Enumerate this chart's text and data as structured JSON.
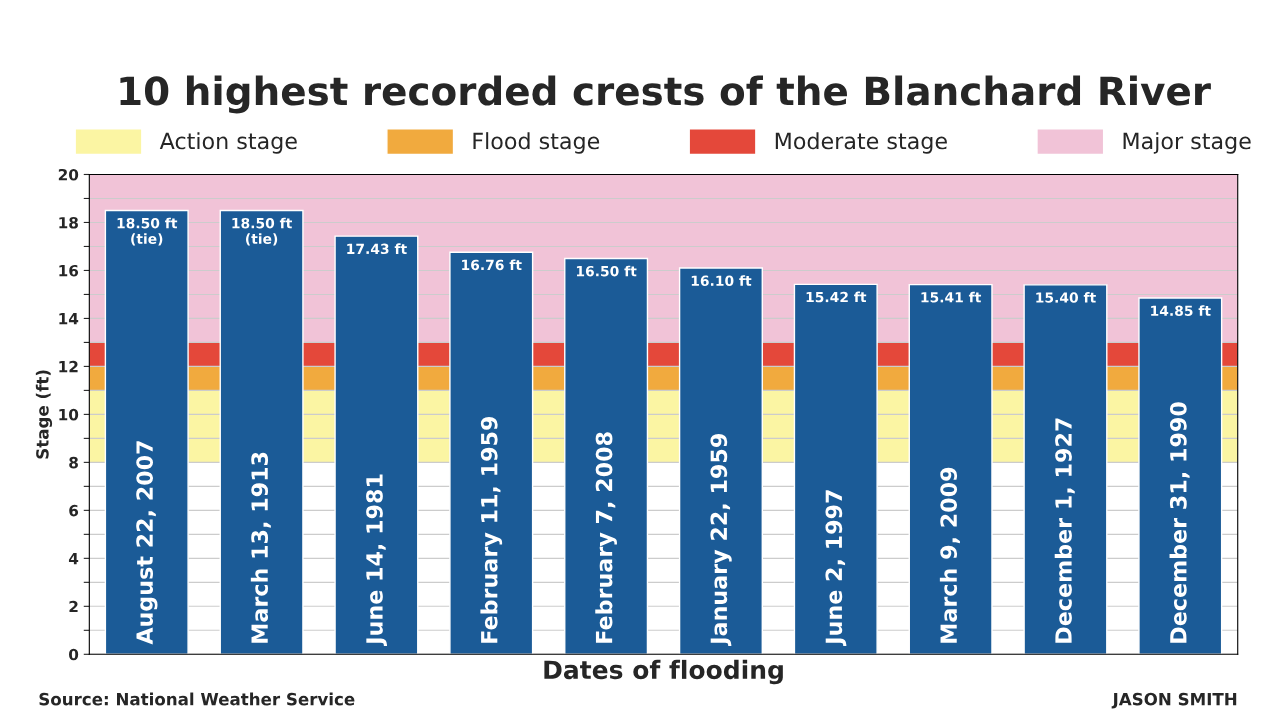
{
  "chart_data": {
    "type": "bar",
    "title": "10 highest recorded crests of the Blanchard River",
    "xlabel": "Dates of flooding",
    "ylabel": "Stage (ft)",
    "categories": [
      "August 22, 2007",
      "March 13, 1913",
      "June 14, 1981",
      "February 11, 1959",
      "February 7, 2008",
      "January 22, 1959",
      "June 2, 1997",
      "March 9, 2009",
      "December 1, 1927",
      "December 31, 1990"
    ],
    "values": [
      18.5,
      18.5,
      17.43,
      16.76,
      16.5,
      16.1,
      15.42,
      15.41,
      15.4,
      14.85
    ],
    "color": "#1b5b97",
    "value_labels": [
      "18.50 ft\n(tie)",
      "18.50 ft\n(tie)",
      "17.43 ft",
      "16.76 ft",
      "16.50 ft",
      "16.10 ft",
      "15.42 ft",
      "15.41 ft",
      "15.40 ft",
      "14.85 ft"
    ],
    "ylim": [
      0,
      20
    ],
    "yticks": [
      0,
      {
        "value": 1,
        "label": null
      },
      2,
      {
        "value": 3,
        "label": null
      },
      4,
      {
        "value": 5,
        "label": null
      },
      6,
      {
        "value": 7,
        "label": null
      },
      8,
      {
        "value": 9,
        "label": null
      },
      10,
      {
        "value": 11,
        "label": null
      },
      12,
      {
        "value": 13,
        "label": null
      },
      14,
      {
        "value": 15,
        "label": null
      },
      16,
      {
        "value": 17,
        "label": null
      },
      18,
      {
        "value": 19,
        "label": null
      },
      20
    ],
    "grid": "y",
    "bands": [
      {
        "axis": "y",
        "from": 8,
        "to": 11,
        "label": "Action stage",
        "color": "#fbf5a3"
      },
      {
        "axis": "y",
        "from": 11,
        "to": 12,
        "label": "Flood stage",
        "color": "#f1aa3e"
      },
      {
        "axis": "y",
        "from": 12,
        "to": 13,
        "label": "Moderate stage",
        "color": "#e4483a"
      },
      {
        "axis": "y",
        "from": 13,
        "to": 20,
        "label": "Major stage",
        "color": "#f1c3d7"
      }
    ],
    "legend": "top",
    "annotations": [
      "Source: National Weather Service",
      "JASON SMITH"
    ]
  }
}
